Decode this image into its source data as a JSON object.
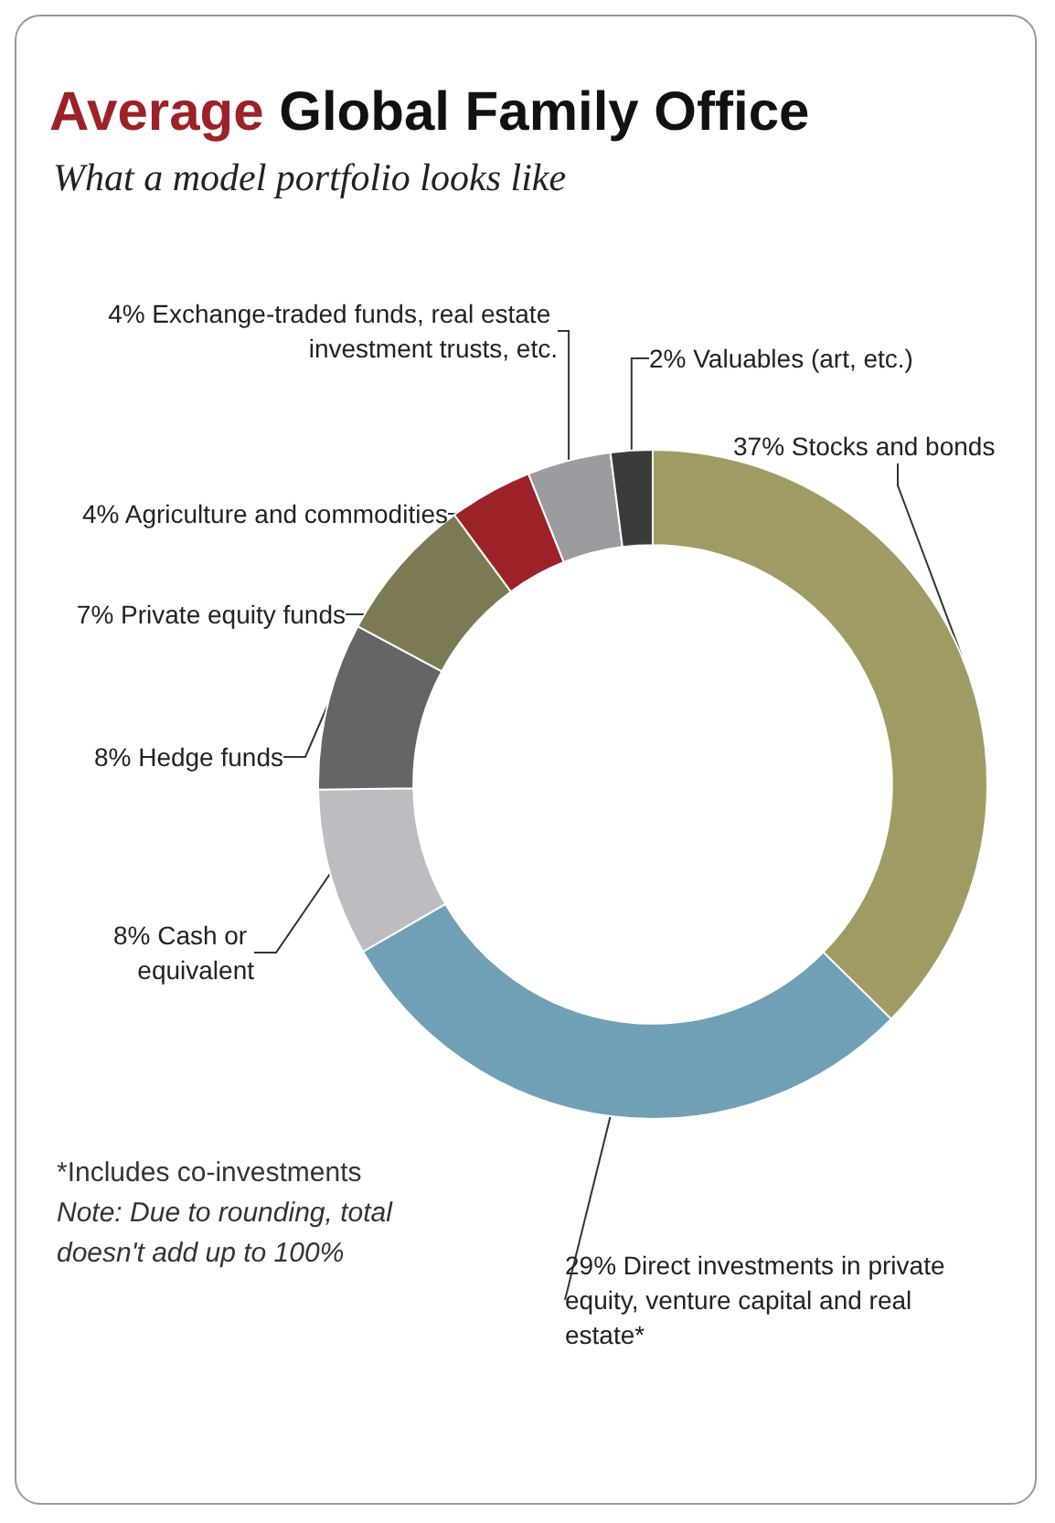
{
  "chart_data": {
    "type": "donut",
    "title": "Average Global Family Office",
    "subtitle": "What a model portfolio looks like",
    "categories": [
      "Stocks and bonds",
      "Direct investments in private equity, venture capital and real estate*",
      "Cash or equivalent",
      "Hedge funds",
      "Private equity funds",
      "Agriculture and commodities",
      "Exchange-traded funds, real estate investment trusts, etc.",
      "Valuables (art, etc.)"
    ],
    "values": [
      37,
      29,
      8,
      8,
      7,
      4,
      4,
      2
    ],
    "value_labels": [
      "37%",
      "29%",
      "8%",
      "8%",
      "7%",
      "4%",
      "4%",
      "2%"
    ],
    "colors": [
      "#a09b63",
      "#6fa0b6",
      "#bcbdc1",
      "#646567",
      "#7c7a53",
      "#9c2228",
      "#9b9ca0",
      "#3b3b3d"
    ],
    "annotations": [
      "*Includes co-investments",
      "Note: Due to rounding, total doesn't add up to 100%"
    ],
    "legend": false
  }
}
